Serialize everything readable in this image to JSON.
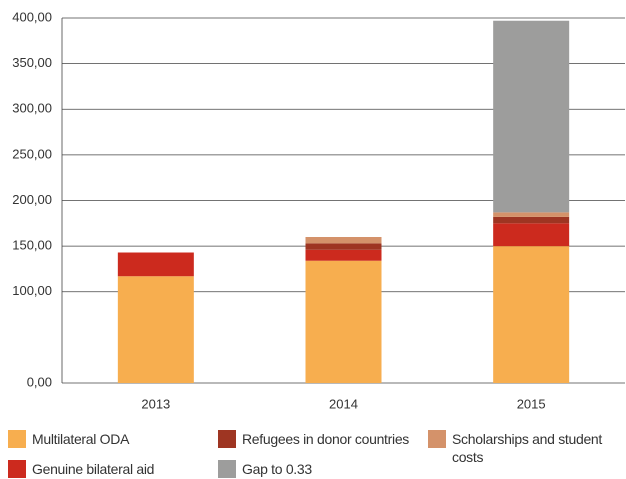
{
  "chart_data": {
    "type": "stacked_bar",
    "categories": [
      "2013",
      "2014",
      "2015"
    ],
    "series": [
      {
        "name": "Multilateral ODA",
        "color": "#f7ae4f",
        "values": [
          117,
          134,
          150
        ]
      },
      {
        "name": "Genuine bilateral aid",
        "color": "#cc2a1e",
        "values": [
          26,
          12,
          25
        ]
      },
      {
        "name": "Refugees in donor countries",
        "color": "#9e3522",
        "values": [
          0,
          7,
          7
        ]
      },
      {
        "name": "Scholarships and student costs",
        "color": "#d4926a",
        "values": [
          0,
          7,
          5
        ]
      },
      {
        "name": "Gap to 0.33",
        "color": "#9d9d9c",
        "values": [
          0,
          0,
          210
        ]
      }
    ],
    "ylim": [
      0,
      400
    ],
    "yticks": [
      {
        "value": 0,
        "label": "0,00"
      },
      {
        "value": 100,
        "label": "100,00"
      },
      {
        "value": 150,
        "label": "150,00"
      },
      {
        "value": 200,
        "label": "200,00"
      },
      {
        "value": 250,
        "label": "250,00"
      },
      {
        "value": 300,
        "label": "300,00"
      },
      {
        "value": 350,
        "label": "350,00"
      },
      {
        "value": 400,
        "label": "400,00"
      }
    ],
    "grid": true
  }
}
